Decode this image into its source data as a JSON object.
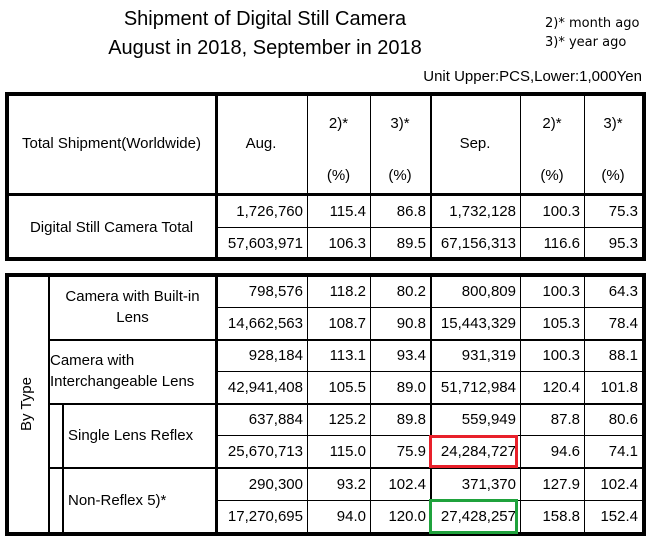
{
  "title": [
    "Shipment of Digital Still Camera",
    "August in 2018, September in 2018"
  ],
  "notes": [
    "2)* month ago",
    "3)* year ago"
  ],
  "unit": "Unit Upper:PCS,Lower:1,000Yen",
  "header": {
    "label": "Total Shipment(Worldwide)",
    "aug": "Aug.",
    "sep": "Sep.",
    "mom": "2)*",
    "yoy": "3)*",
    "pct": "(%)"
  },
  "total": {
    "label": "Digital Still Camera Total",
    "rows": [
      [
        "1,726,760",
        "115.4",
        "86.8",
        "1,732,128",
        "100.3",
        "75.3"
      ],
      [
        "57,603,971",
        "106.3",
        "89.5",
        "67,156,313",
        "116.6",
        "95.3"
      ]
    ]
  },
  "by_type": {
    "label": "By Type",
    "groups": [
      {
        "label": "Camera with Built-in Lens",
        "rows": [
          [
            "798,576",
            "118.2",
            "80.2",
            "800,809",
            "100.3",
            "64.3"
          ],
          [
            "14,662,563",
            "108.7",
            "90.8",
            "15,443,329",
            "105.3",
            "78.4"
          ]
        ]
      },
      {
        "label": "Camera with Interchangeable Lens",
        "rows": [
          [
            "928,184",
            "113.1",
            "93.4",
            "931,319",
            "100.3",
            "88.1"
          ],
          [
            "42,941,408",
            "105.5",
            "89.0",
            "51,712,984",
            "120.4",
            "101.8"
          ]
        ]
      },
      {
        "label": "Single Lens Reflex",
        "rows": [
          [
            "637,884",
            "125.2",
            "89.8",
            "559,949",
            "87.8",
            "80.6"
          ],
          [
            "25,670,713",
            "115.0",
            "75.9",
            "24,284,727",
            "94.6",
            "74.1"
          ]
        ]
      },
      {
        "label": "Non-Reflex 5)*",
        "rows": [
          [
            "290,300",
            "93.2",
            "102.4",
            "371,370",
            "127.9",
            "102.4"
          ],
          [
            "17,270,695",
            "94.0",
            "120.0",
            "27,428,257",
            "158.8",
            "152.4"
          ]
        ]
      }
    ]
  },
  "highlights": {
    "red": "#e8202a",
    "green": "#1fa23c"
  }
}
